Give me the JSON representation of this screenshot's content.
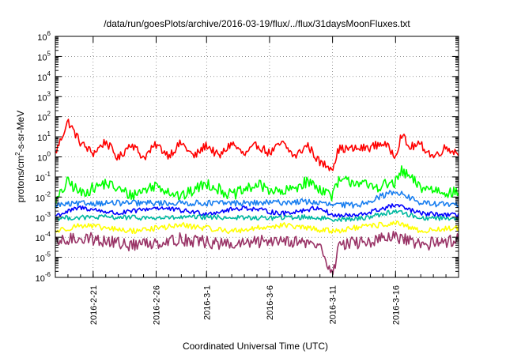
{
  "chart_data": {
    "type": "line",
    "title": "/data/run/goesPlots/archive/2016-03-19/flux/../flux/31daysMoonFluxes.txt",
    "xlabel": "Coordinated Universal Time (UTC)",
    "ylabel": "protons/cm²-s-sr-MeV",
    "yscale": "log",
    "ylim": [
      1e-06,
      1000000.0
    ],
    "xlim": [
      "2016-02-18",
      "2016-03-21"
    ],
    "grid": true,
    "grid_style": "dotted",
    "legend": "none",
    "y_ticks": [
      {
        "base": "10",
        "exp": "-6"
      },
      {
        "base": "10",
        "exp": "-5"
      },
      {
        "base": "10",
        "exp": "-4"
      },
      {
        "base": "10",
        "exp": "-3"
      },
      {
        "base": "10",
        "exp": "-2"
      },
      {
        "base": "10",
        "exp": "-1"
      },
      {
        "base": "10",
        "exp": "0"
      },
      {
        "base": "10",
        "exp": "1"
      },
      {
        "base": "10",
        "exp": "2"
      },
      {
        "base": "10",
        "exp": "3"
      },
      {
        "base": "10",
        "exp": "4"
      },
      {
        "base": "10",
        "exp": "5"
      },
      {
        "base": "10",
        "exp": "6"
      }
    ],
    "x_ticks": [
      "2016-2-21",
      "2016-2-26",
      "2016-3-1",
      "2016-3-6",
      "2016-3-11",
      "2016-3-16"
    ],
    "series": [
      {
        "color": "#ff0000",
        "approx_range": [
          0.5,
          8
        ],
        "typical": 2,
        "points": [
          [
            "2016-02-18",
            1.5
          ],
          [
            "2016-02-19",
            60
          ],
          [
            "2016-02-20",
            5
          ],
          [
            "2016-02-21",
            1.5
          ],
          [
            "2016-02-22",
            6
          ],
          [
            "2016-02-23",
            0.8
          ],
          [
            "2016-02-24",
            5
          ],
          [
            "2016-02-25",
            0.9
          ],
          [
            "2016-02-26",
            4
          ],
          [
            "2016-02-27",
            1.2
          ],
          [
            "2016-02-28",
            5
          ],
          [
            "2016-02-29",
            1
          ],
          [
            "2016-03-01",
            4
          ],
          [
            "2016-03-02",
            1
          ],
          [
            "2016-03-03",
            5
          ],
          [
            "2016-03-04",
            1.2
          ],
          [
            "2016-03-05",
            4
          ],
          [
            "2016-03-06",
            1.5
          ],
          [
            "2016-03-07",
            5
          ],
          [
            "2016-03-08",
            1
          ],
          [
            "2016-03-09",
            4
          ],
          [
            "2016-03-10",
            0.5
          ],
          [
            "2016-03-11",
            0.3
          ],
          [
            "2016-03-11T12:00",
            2.5
          ],
          [
            "2016-03-13",
            2.5
          ],
          [
            "2016-03-14",
            3
          ],
          [
            "2016-03-15",
            5
          ],
          [
            "2016-03-16",
            1.2
          ],
          [
            "2016-03-16T12:00",
            15
          ],
          [
            "2016-03-17",
            3
          ],
          [
            "2016-03-18",
            4
          ],
          [
            "2016-03-19",
            1
          ],
          [
            "2016-03-20",
            3
          ],
          [
            "2016-03-21",
            1.5
          ]
        ]
      },
      {
        "color": "#00ff00",
        "approx_range": [
          0.005,
          0.2
        ],
        "typical": 0.02,
        "points": [
          [
            "2016-02-18",
            0.005
          ],
          [
            "2016-02-19",
            0.06
          ],
          [
            "2016-02-20",
            0.015
          ],
          [
            "2016-02-22",
            0.05
          ],
          [
            "2016-02-24",
            0.012
          ],
          [
            "2016-02-26",
            0.04
          ],
          [
            "2016-02-28",
            0.01
          ],
          [
            "2016-03-01",
            0.05
          ],
          [
            "2016-03-03",
            0.012
          ],
          [
            "2016-03-05",
            0.04
          ],
          [
            "2016-03-07",
            0.015
          ],
          [
            "2016-03-09",
            0.06
          ],
          [
            "2016-03-11",
            0.012
          ],
          [
            "2016-03-11T12:00",
            0.06
          ],
          [
            "2016-03-13",
            0.06
          ],
          [
            "2016-03-14",
            0.03
          ],
          [
            "2016-03-16",
            0.05
          ],
          [
            "2016-03-16T12:00",
            0.2
          ],
          [
            "2016-03-18",
            0.03
          ],
          [
            "2016-03-21",
            0.015
          ]
        ]
      },
      {
        "color": "#0000ff",
        "approx_range": [
          0.001,
          0.004
        ],
        "typical": 0.002,
        "points": [
          [
            "2016-02-18",
            0.0012
          ],
          [
            "2016-02-20",
            0.003
          ],
          [
            "2016-02-23",
            0.0015
          ],
          [
            "2016-02-26",
            0.003
          ],
          [
            "2016-03-01",
            0.0015
          ],
          [
            "2016-03-04",
            0.003
          ],
          [
            "2016-03-07",
            0.0015
          ],
          [
            "2016-03-10",
            0.003
          ],
          [
            "2016-03-11",
            0.0012
          ],
          [
            "2016-03-13",
            0.0012
          ],
          [
            "2016-03-16",
            0.004
          ],
          [
            "2016-03-18",
            0.0015
          ],
          [
            "2016-03-21",
            0.0012
          ]
        ]
      },
      {
        "color": "#1a7ff0",
        "approx_range": [
          0.003,
          0.02
        ],
        "typical": 0.005,
        "points": [
          [
            "2016-02-18",
            0.004
          ],
          [
            "2016-02-21",
            0.005
          ],
          [
            "2016-02-25",
            0.005
          ],
          [
            "2016-03-01",
            0.005
          ],
          [
            "2016-03-05",
            0.005
          ],
          [
            "2016-03-09",
            0.006
          ],
          [
            "2016-03-11",
            0.004
          ],
          [
            "2016-03-13",
            0.004
          ],
          [
            "2016-03-16",
            0.02
          ],
          [
            "2016-03-18",
            0.005
          ],
          [
            "2016-03-21",
            0.004
          ]
        ]
      },
      {
        "color": "#00b8a0",
        "approx_range": [
          0.0005,
          0.002
        ],
        "typical": 0.0009,
        "points": [
          [
            "2016-02-18",
            0.0009
          ],
          [
            "2016-02-22",
            0.001
          ],
          [
            "2016-02-26",
            0.0009
          ],
          [
            "2016-03-01",
            0.001
          ],
          [
            "2016-03-05",
            0.0009
          ],
          [
            "2016-03-09",
            0.001
          ],
          [
            "2016-03-11",
            0.0008
          ],
          [
            "2016-03-13",
            0.0008
          ],
          [
            "2016-03-16",
            0.002
          ],
          [
            "2016-03-18",
            0.0009
          ],
          [
            "2016-03-21",
            0.0009
          ]
        ]
      },
      {
        "color": "#ffff00",
        "approx_range": [
          0.0001,
          0.0006
        ],
        "typical": 0.0003,
        "points": [
          [
            "2016-02-18",
            0.0002
          ],
          [
            "2016-02-20",
            0.0004
          ],
          [
            "2016-02-24",
            0.0002
          ],
          [
            "2016-02-28",
            0.0004
          ],
          [
            "2016-03-03",
            0.0002
          ],
          [
            "2016-03-07",
            0.0004
          ],
          [
            "2016-03-11",
            0.0002
          ],
          [
            "2016-03-13",
            0.0003
          ],
          [
            "2016-03-16",
            0.0005
          ],
          [
            "2016-03-18",
            0.0002
          ],
          [
            "2016-03-21",
            0.0003
          ]
        ]
      },
      {
        "color": "#993366",
        "approx_range": [
          5e-06,
          0.0003
        ],
        "typical": 5e-05,
        "points": [
          [
            "2016-02-18",
            5e-05
          ],
          [
            "2016-02-20",
            0.0001
          ],
          [
            "2016-02-24",
            4e-05
          ],
          [
            "2016-02-28",
            8e-05
          ],
          [
            "2016-03-03",
            4e-05
          ],
          [
            "2016-03-07",
            8e-05
          ],
          [
            "2016-03-10",
            4e-05
          ],
          [
            "2016-03-11",
            1e-06
          ],
          [
            "2016-03-11T12:00",
            5e-05
          ],
          [
            "2016-03-13",
            5e-05
          ],
          [
            "2016-03-16",
            0.0001
          ],
          [
            "2016-03-18",
            4e-05
          ],
          [
            "2016-03-21",
            8e-05
          ]
        ]
      }
    ]
  }
}
